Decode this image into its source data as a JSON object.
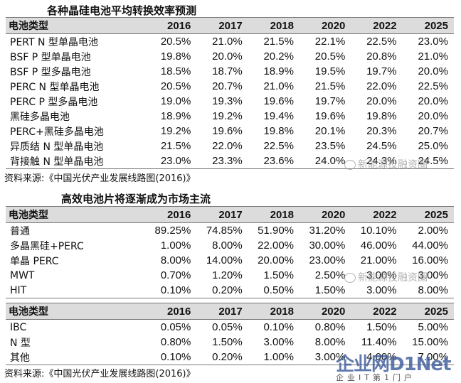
{
  "table1": {
    "title": "各种晶硅电池平均转换效率预测",
    "header": [
      "电池类型",
      "2016",
      "2017",
      "2018",
      "2020",
      "2022",
      "2025"
    ],
    "rows": [
      [
        "PERT N 型单晶电池",
        "20.5%",
        "21.0%",
        "21.5%",
        "22.1%",
        "22.5%",
        "23.0%"
      ],
      [
        "BSF P 型单晶电池",
        "19.8%",
        "20.0%",
        "20.2%",
        "20.5%",
        "20.8%",
        "21.0%"
      ],
      [
        "BSF P 型多晶电池",
        "18.5%",
        "18.7%",
        "18.9%",
        "19.5%",
        "19.7%",
        "20.0%"
      ],
      [
        "PERC N 型单晶电池",
        "20.5%",
        "20.7%",
        "21.0%",
        "21.5%",
        "22.0%",
        "22.5%"
      ],
      [
        "PERC P 型多晶电池",
        "19.0%",
        "19.3%",
        "19.6%",
        "19.7%",
        "20.0%",
        "20.0%"
      ],
      [
        "黑硅多晶电池",
        "18.9%",
        "19.2%",
        "19.4%",
        "19.6%",
        "19.8%",
        "20.0%"
      ],
      [
        "PERC+黑硅多晶电池",
        "19.2%",
        "19.6%",
        "19.8%",
        "20.1%",
        "20.3%",
        "20.7%"
      ],
      [
        "异质结 N 型单晶电池",
        "21.5%",
        "22.0%",
        "22.5%",
        "23.5%",
        "24.5%",
        "25.0%"
      ],
      [
        "背接触 N 型单晶电池",
        "23.0%",
        "23.3%",
        "23.6%",
        "24.0%",
        "24.3%",
        "24.5%"
      ]
    ],
    "source": "资料来源:《中国光伏产业发展线路图(2016)》"
  },
  "table2": {
    "title": "高效电池片将逐渐成为市场主流",
    "header": [
      "电池类型",
      "2016",
      "2017",
      "2018",
      "2020",
      "2022",
      "2025"
    ],
    "rows": [
      [
        "普通",
        "89.25%",
        "74.85%",
        "51.90%",
        "31.20%",
        "10.10%",
        "2.00%"
      ],
      [
        "多晶黑硅+PERC",
        "1.00%",
        "8.00%",
        "22.00%",
        "30.00%",
        "46.00%",
        "44.00%"
      ],
      [
        "单晶 PERC",
        "8.00%",
        "14.00%",
        "20.00%",
        "23.00%",
        "21.00%",
        "16.00%"
      ],
      [
        "MWT",
        "0.70%",
        "1.20%",
        "1.50%",
        "2.50%",
        "3.00%",
        "3.00%"
      ],
      [
        "HIT",
        "0.10%",
        "0.20%",
        "0.50%",
        "1.50%",
        "3.00%",
        "8.00%"
      ]
    ]
  },
  "table3": {
    "header": [
      "电池类型",
      "2016",
      "2017",
      "2018",
      "2020",
      "2022",
      "2025"
    ],
    "rows": [
      [
        "IBC",
        "0.05%",
        "0.05%",
        "0.10%",
        "0.80%",
        "1.50%",
        "5.00%"
      ],
      [
        "N 型",
        "0.80%",
        "1.50%",
        "3.00%",
        "8.00%",
        "11.40%",
        "15.00%"
      ],
      [
        "其他",
        "0.10%",
        "0.20%",
        "1.00%",
        "3.00%",
        "4.00%",
        "7.00%"
      ]
    ],
    "source": "资料来源:《中国光伏产业发展线路图(2016)》"
  },
  "watermark": {
    "text1": "新能源投融资圈",
    "text2": "新能源投融资圈"
  },
  "logo": {
    "top": "企业网D1Net",
    "bottom": "企业IT第1门户"
  }
}
